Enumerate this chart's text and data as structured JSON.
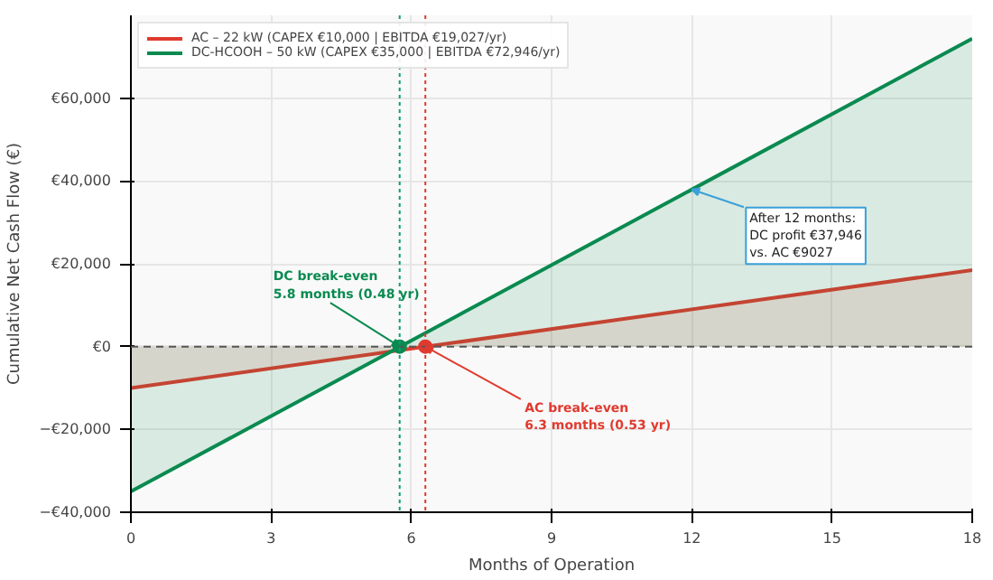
{
  "chart_data": {
    "type": "area",
    "xlabel": "Months of Operation",
    "ylabel": "Cumulative Net Cash Flow (€)",
    "xlim": [
      0,
      18
    ],
    "ylim": [
      -40000,
      80000
    ],
    "xticks": [
      0,
      3,
      6,
      9,
      12,
      15,
      18
    ],
    "yticks": [
      {
        "value": -40000,
        "label": "−€40,000"
      },
      {
        "value": -20000,
        "label": "−€20,000"
      },
      {
        "value": 0,
        "label": "€0"
      },
      {
        "value": 20000,
        "label": "€20,000"
      },
      {
        "value": 40000,
        "label": "€40,000"
      },
      {
        "value": 60000,
        "label": "€60,000"
      }
    ],
    "grid": true,
    "legend": "top left",
    "series": [
      {
        "name": "AC – 22 kW (CAPEX €10,000 | EBITDA €19,027/yr)",
        "color": "#e03a2f",
        "x": [
          0,
          18
        ],
        "values": [
          -10000,
          18500
        ]
      },
      {
        "name": "DC-HCOOH – 50 kW (CAPEX €35,000 | EBITDA €72,946/yr)",
        "color": "#0a8a50",
        "x": [
          0,
          18
        ],
        "values": [
          -35000,
          74400
        ]
      },
      {
        "type": "scatter",
        "x": [
          5.75,
          6.3
        ],
        "values": [
          0,
          0
        ],
        "colors": [
          "#0a8a50",
          "#e03a2f"
        ]
      }
    ],
    "ref_lines": [
      {
        "axis": "x",
        "value": 5.75,
        "color": "#0aa070",
        "line_style": "dotted"
      },
      {
        "axis": "x",
        "value": 6.3,
        "color": "#e03a2f",
        "line_style": "dotted"
      },
      {
        "axis": "y",
        "value": 0,
        "color": "#555555",
        "line_style": "dashed"
      }
    ],
    "annotations": [
      {
        "text": "DC break-even\n5.8 months (0.48 yr)",
        "x": 5.75,
        "y": 0
      },
      {
        "text": "AC break-even\n6.3 months (0.53 yr)",
        "x": 6.3,
        "y": 0
      },
      {
        "text": "After 12 months:\nDC profit €37,946\nvs. AC €9027",
        "x": 12,
        "y": 37946
      }
    ]
  }
}
